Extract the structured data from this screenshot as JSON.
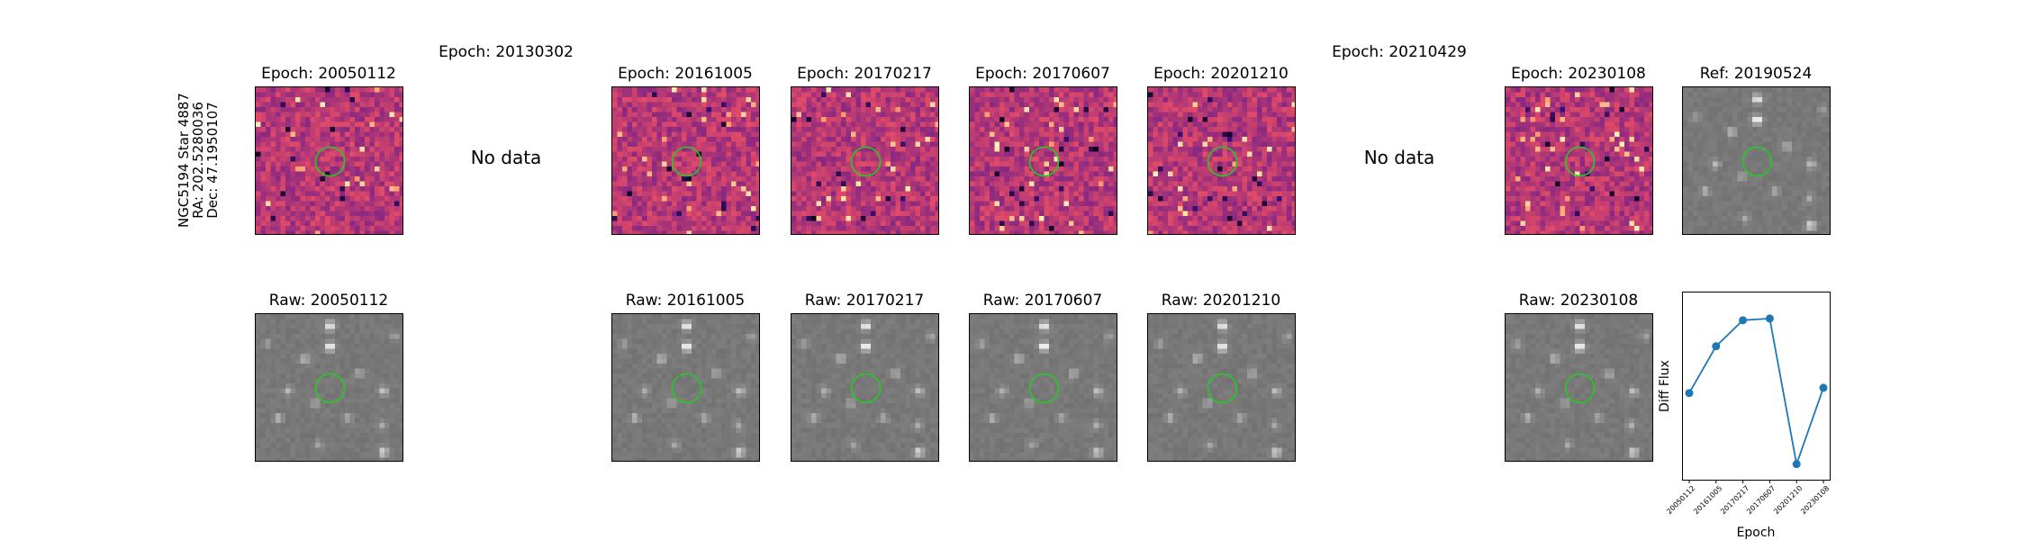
{
  "source_label": {
    "line1": "NGC5194 Star 4887",
    "line2": "RA: 202.5280036",
    "line3": "Dec: 47.1950107"
  },
  "diff_row": [
    {
      "title": "Epoch: 20050112",
      "has_data": true,
      "style": "diff"
    },
    {
      "title": "Epoch: 20130302",
      "has_data": false,
      "no_data_text": "No data"
    },
    {
      "title": "Epoch: 20161005",
      "has_data": true,
      "style": "diff"
    },
    {
      "title": "Epoch: 20170217",
      "has_data": true,
      "style": "diff"
    },
    {
      "title": "Epoch: 20170607",
      "has_data": true,
      "style": "diff"
    },
    {
      "title": "Epoch: 20201210",
      "has_data": true,
      "style": "diff"
    },
    {
      "title": "Epoch: 20210429",
      "has_data": false,
      "no_data_text": "No data"
    },
    {
      "title": "Epoch: 20230108",
      "has_data": true,
      "style": "diff"
    },
    {
      "title": "Ref: 20190524",
      "has_data": true,
      "style": "raw"
    }
  ],
  "raw_row": [
    {
      "title": "Raw: 20050112"
    },
    {
      "title": ""
    },
    {
      "title": "Raw: 20161005"
    },
    {
      "title": "Raw: 20170217"
    },
    {
      "title": "Raw: 20170607"
    },
    {
      "title": "Raw: 20201210"
    },
    {
      "title": ""
    },
    {
      "title": "Raw: 20230108"
    }
  ],
  "colors": {
    "diff_colormap": [
      "#000004",
      "#3b0f70",
      "#8c2981",
      "#de4968",
      "#fe9f6d",
      "#fcfdbf"
    ],
    "marker_circle": "#22cc22",
    "line_series": "#1f77b4"
  },
  "chart_data": {
    "type": "line",
    "categories": [
      "20050112",
      "20161005",
      "20170217",
      "20170607",
      "20201210",
      "20230108"
    ],
    "values": [
      0.35,
      0.62,
      0.77,
      0.78,
      -0.06,
      0.38
    ],
    "xlabel": "Epoch",
    "ylabel": "Diff Flux",
    "ylim": [
      -0.15,
      0.93
    ],
    "yticks_shown": false,
    "grid": false,
    "marker": "o"
  }
}
